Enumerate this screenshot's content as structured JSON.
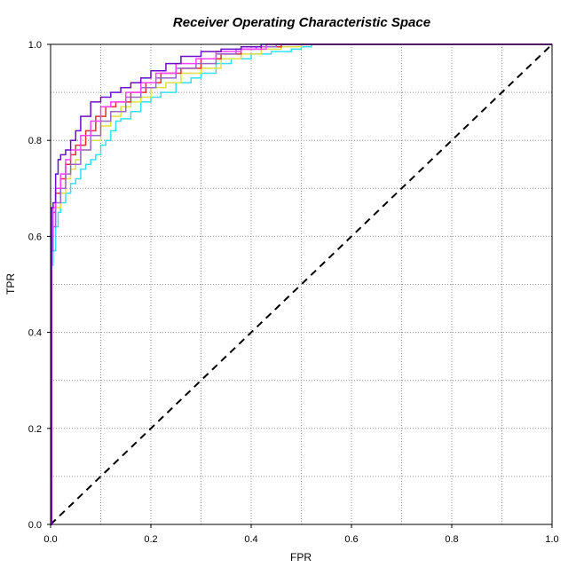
{
  "chart_data": {
    "type": "line",
    "title": "Receiver Operating Characteristic Space",
    "xlabel": "FPR",
    "ylabel": "TPR",
    "xlim": [
      0,
      1
    ],
    "ylim": [
      0,
      1
    ],
    "x_ticks": [
      "0.0",
      "0.2",
      "0.4",
      "0.6",
      "0.8",
      "1.0"
    ],
    "y_ticks": [
      "0.0",
      "0.2",
      "0.4",
      "0.6",
      "0.8",
      "1.0"
    ],
    "grid": true,
    "minor_grid_step": 0.1,
    "diagonal": {
      "x": [
        0,
        1
      ],
      "y": [
        0,
        1
      ],
      "style": "dashed",
      "color": "#000000"
    },
    "series": [
      {
        "color": "#33e0f0",
        "x": [
          0,
          0.002,
          0.005,
          0.01,
          0.015,
          0.02,
          0.03,
          0.04,
          0.05,
          0.06,
          0.07,
          0.08,
          0.09,
          0.1,
          0.11,
          0.12,
          0.13,
          0.14,
          0.16,
          0.18,
          0.2,
          0.22,
          0.25,
          0.28,
          0.3,
          0.33,
          0.36,
          0.4,
          0.44,
          0.48,
          0.5,
          0.52,
          1.0
        ],
        "y": [
          0,
          0.54,
          0.57,
          0.62,
          0.65,
          0.67,
          0.69,
          0.71,
          0.72,
          0.74,
          0.75,
          0.76,
          0.77,
          0.79,
          0.8,
          0.82,
          0.84,
          0.845,
          0.86,
          0.88,
          0.89,
          0.9,
          0.92,
          0.93,
          0.94,
          0.96,
          0.97,
          0.98,
          0.985,
          0.99,
          0.995,
          1.0,
          1.0
        ]
      },
      {
        "color": "#e0e040",
        "x": [
          0,
          0.002,
          0.005,
          0.01,
          0.02,
          0.03,
          0.04,
          0.05,
          0.06,
          0.08,
          0.1,
          0.12,
          0.14,
          0.16,
          0.18,
          0.2,
          0.23,
          0.26,
          0.3,
          0.34,
          0.38,
          0.42,
          0.46,
          0.5,
          1.0
        ],
        "y": [
          0,
          0.58,
          0.62,
          0.66,
          0.69,
          0.72,
          0.74,
          0.76,
          0.78,
          0.8,
          0.83,
          0.85,
          0.87,
          0.88,
          0.89,
          0.91,
          0.92,
          0.94,
          0.95,
          0.97,
          0.98,
          0.99,
          0.995,
          1.0,
          1.0
        ]
      },
      {
        "color": "#e03030",
        "x": [
          0,
          0.002,
          0.005,
          0.01,
          0.02,
          0.03,
          0.04,
          0.05,
          0.07,
          0.09,
          0.11,
          0.13,
          0.16,
          0.19,
          0.22,
          0.26,
          0.3,
          0.34,
          0.38,
          0.42,
          0.46,
          1.0
        ],
        "y": [
          0,
          0.6,
          0.65,
          0.69,
          0.72,
          0.75,
          0.77,
          0.79,
          0.82,
          0.85,
          0.87,
          0.88,
          0.9,
          0.92,
          0.94,
          0.95,
          0.97,
          0.98,
          0.99,
          0.995,
          1.0,
          1.0
        ]
      },
      {
        "color": "#9966cc",
        "x": [
          0,
          0.002,
          0.005,
          0.01,
          0.02,
          0.03,
          0.04,
          0.06,
          0.08,
          0.1,
          0.12,
          0.15,
          0.18,
          0.21,
          0.25,
          0.29,
          0.33,
          0.37,
          0.41,
          0.45,
          1.0
        ],
        "y": [
          0,
          0.57,
          0.62,
          0.67,
          0.7,
          0.73,
          0.75,
          0.78,
          0.81,
          0.84,
          0.86,
          0.89,
          0.91,
          0.93,
          0.95,
          0.96,
          0.98,
          0.99,
          0.995,
          1.0,
          1.0
        ]
      },
      {
        "color": "#ff40ff",
        "x": [
          0,
          0.002,
          0.005,
          0.01,
          0.02,
          0.03,
          0.04,
          0.06,
          0.08,
          0.1,
          0.12,
          0.15,
          0.18,
          0.21,
          0.25,
          0.29,
          0.33,
          0.38,
          0.43,
          0.47,
          1.0
        ],
        "y": [
          0,
          0.6,
          0.66,
          0.7,
          0.73,
          0.76,
          0.78,
          0.81,
          0.84,
          0.87,
          0.88,
          0.9,
          0.92,
          0.94,
          0.96,
          0.97,
          0.985,
          0.99,
          1.0,
          1.0,
          1.0
        ]
      },
      {
        "color": "#6a0dcc",
        "x": [
          0,
          0.002,
          0.005,
          0.01,
          0.015,
          0.02,
          0.03,
          0.04,
          0.05,
          0.06,
          0.08,
          0.1,
          0.12,
          0.14,
          0.16,
          0.18,
          0.2,
          0.23,
          0.26,
          0.3,
          0.34,
          0.38,
          0.42,
          0.46,
          1.0
        ],
        "y": [
          0,
          0.66,
          0.67,
          0.73,
          0.76,
          0.77,
          0.78,
          0.8,
          0.82,
          0.85,
          0.88,
          0.89,
          0.9,
          0.91,
          0.92,
          0.93,
          0.945,
          0.96,
          0.975,
          0.985,
          0.99,
          0.995,
          1.0,
          1.0,
          1.0
        ]
      }
    ]
  }
}
